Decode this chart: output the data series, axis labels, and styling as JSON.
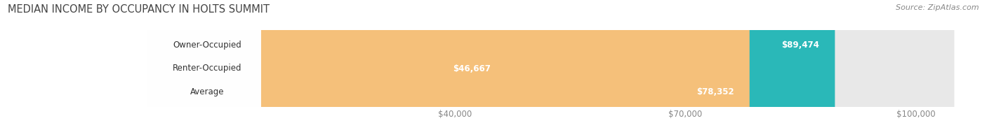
{
  "title": "MEDIAN INCOME BY OCCUPANCY IN HOLTS SUMMIT",
  "source": "Source: ZipAtlas.com",
  "categories": [
    "Owner-Occupied",
    "Renter-Occupied",
    "Average"
  ],
  "values": [
    89474,
    46667,
    78352
  ],
  "labels": [
    "$89,474",
    "$46,667",
    "$78,352"
  ],
  "bar_colors": [
    "#2ab8b8",
    "#c9afd4",
    "#f5c07a"
  ],
  "bar_bg_color": "#e8e8e8",
  "xlim_min": -18000,
  "xlim_max": 108000,
  "bar_max": 105000,
  "xticks": [
    40000,
    70000,
    100000
  ],
  "xtick_labels": [
    "$40,000",
    "$70,000",
    "$100,000"
  ],
  "title_fontsize": 10.5,
  "source_fontsize": 8,
  "label_fontsize": 8.5,
  "value_fontsize": 8.5,
  "bar_height": 0.52,
  "figsize": [
    14.06,
    1.96
  ],
  "dpi": 100
}
